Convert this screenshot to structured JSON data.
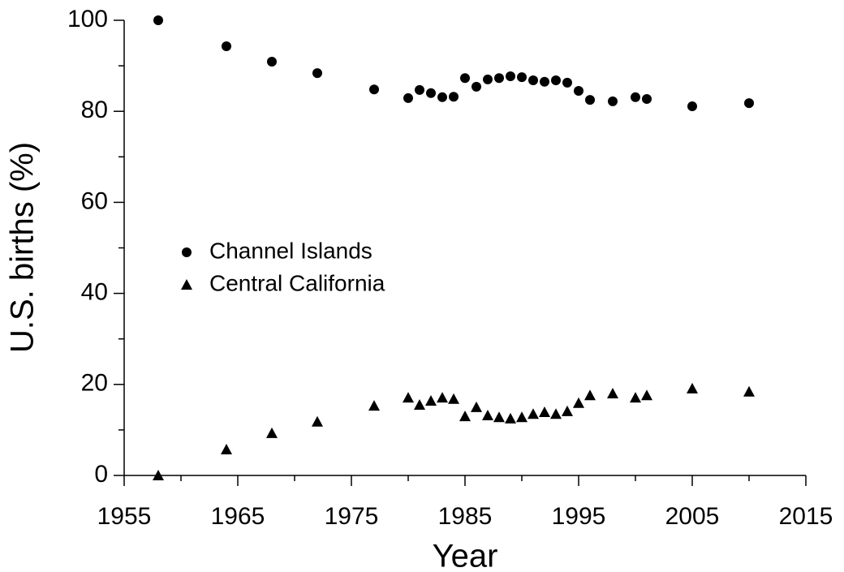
{
  "chart_data": {
    "type": "scatter",
    "xlabel": "Year",
    "ylabel": "U.S. births (%)",
    "x": [
      1958,
      1964,
      1968,
      1972,
      1977,
      1980,
      1981,
      1982,
      1983,
      1984,
      1985,
      1986,
      1987,
      1988,
      1989,
      1990,
      1991,
      1992,
      1993,
      1994,
      1995,
      1996,
      1998,
      2000,
      2001,
      2005,
      2010
    ],
    "series": [
      {
        "name": "Channel Islands",
        "color": "#000000",
        "marker": "circle",
        "values": [
          100,
          94.3,
          90.9,
          88.4,
          84.8,
          82.9,
          84.7,
          84.0,
          83.1,
          83.2,
          87.3,
          85.4,
          87.0,
          87.3,
          87.7,
          87.5,
          86.8,
          86.5,
          86.8,
          86.3,
          84.5,
          82.5,
          82.2,
          83.1,
          82.7,
          81.1,
          81.8
        ]
      },
      {
        "name": "Central California",
        "color": "#000000",
        "marker": "triangle",
        "values": [
          0,
          5.7,
          9.3,
          11.8,
          15.3,
          17.1,
          15.5,
          16.4,
          17.1,
          16.8,
          13.0,
          15.0,
          13.2,
          12.8,
          12.5,
          12.8,
          13.5,
          13.9,
          13.5,
          14.1,
          15.9,
          17.6,
          18.0,
          17.1,
          17.6,
          19.1,
          18.4
        ]
      }
    ],
    "xlim": [
      1955,
      2015
    ],
    "xticks": [
      1955,
      1965,
      1975,
      1985,
      1995,
      2005,
      2015
    ],
    "xticks_minor": [
      1960,
      1970,
      1980,
      1990,
      2000,
      2010
    ],
    "ylim": [
      0,
      100
    ],
    "yticks": [
      0,
      20,
      40,
      60,
      80,
      100
    ],
    "yticks_minor": [
      10,
      30,
      50,
      70,
      90
    ],
    "grid": false,
    "legend": "center left"
  }
}
